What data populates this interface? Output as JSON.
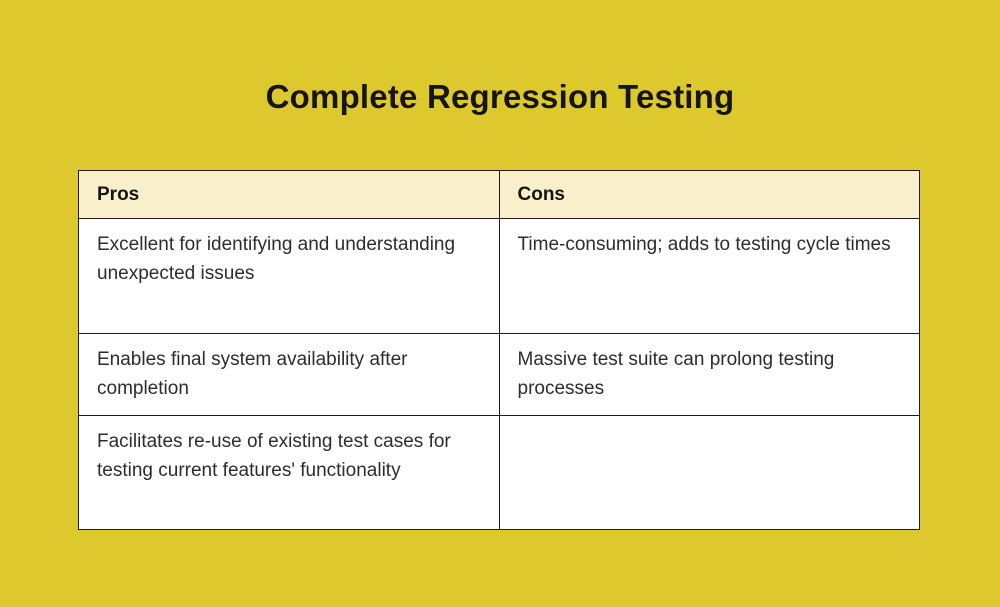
{
  "page": {
    "title": "Complete Regression Testing"
  },
  "colors": {
    "background": "#ddc92d",
    "header_bg": "#f9efcb",
    "cell_bg": "#ffffff",
    "border": "#1c1c1c",
    "title_text": "#151515",
    "body_text": "#2d2d2d"
  },
  "chart_data": {
    "type": "table",
    "title": "Complete Regression Testing",
    "columns": [
      "Pros",
      "Cons"
    ],
    "rows": [
      [
        "Excellent for identifying and understanding unexpected issues",
        "Time-consuming; adds to testing cycle times"
      ],
      [
        "Enables final system availability after completion",
        "Massive test suite can prolong testing processes"
      ],
      [
        "Facilitates re-use of existing test cases for testing current features' functionality",
        ""
      ]
    ],
    "legend": "none",
    "grid": "table-borders"
  }
}
